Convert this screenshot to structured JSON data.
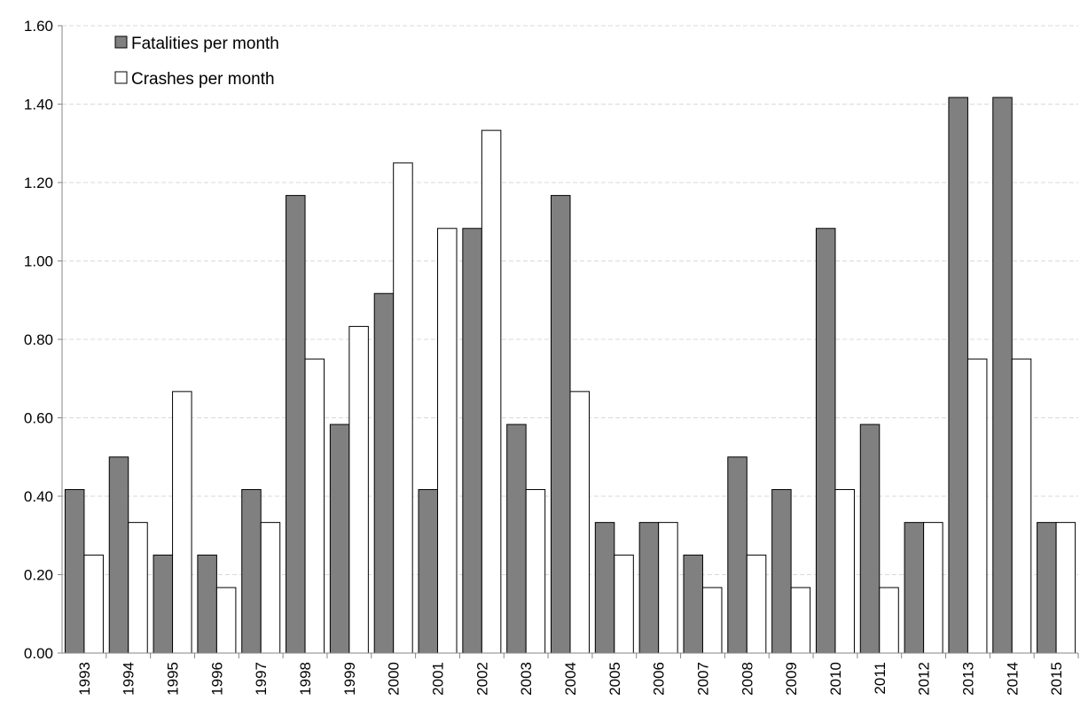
{
  "chart_data": {
    "type": "bar",
    "title": "",
    "xlabel": "",
    "ylabel": "",
    "ylim": [
      0,
      1.6
    ],
    "yticks": [
      "0.00",
      "0.20",
      "0.40",
      "0.60",
      "0.80",
      "1.00",
      "1.20",
      "1.40",
      "1.60"
    ],
    "grid": true,
    "legend_position": "top-left",
    "categories": [
      "1993",
      "1994",
      "1995",
      "1996",
      "1997",
      "1998",
      "1999",
      "2000",
      "2001",
      "2002",
      "2003",
      "2004",
      "2005",
      "2006",
      "2007",
      "2008",
      "2009",
      "2010",
      "2011",
      "2012",
      "2013",
      "2014",
      "2015"
    ],
    "series": [
      {
        "name": "Fatalities per month",
        "color": "#808080",
        "values": [
          0.417,
          0.5,
          0.25,
          0.25,
          0.417,
          1.167,
          0.583,
          0.917,
          0.417,
          1.083,
          0.583,
          1.167,
          0.333,
          0.333,
          0.25,
          0.5,
          0.417,
          1.083,
          0.583,
          0.333,
          1.417,
          1.417,
          0.333
        ]
      },
      {
        "name": "Crashes per month",
        "color": "#ffffff",
        "values": [
          0.25,
          0.333,
          0.667,
          0.167,
          0.333,
          0.75,
          0.833,
          1.25,
          1.083,
          1.333,
          0.417,
          0.667,
          0.25,
          0.333,
          0.167,
          0.25,
          0.167,
          0.417,
          0.167,
          0.333,
          0.75,
          0.75,
          0.333
        ]
      }
    ]
  }
}
